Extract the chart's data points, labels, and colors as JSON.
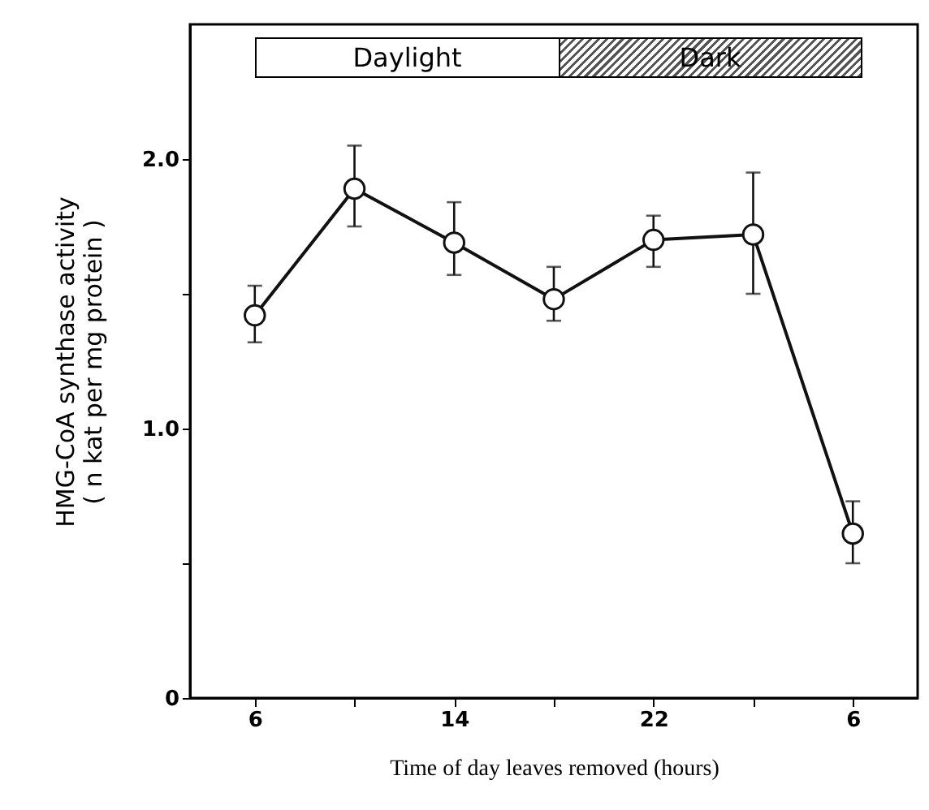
{
  "chart_data": {
    "type": "line",
    "xlabel": "Time of day leaves removed (hours)",
    "ylabel": "HMG-CoA synthase activity\n( n kat per mg protein )",
    "categories": [
      "6",
      null,
      "14",
      null,
      "22",
      null,
      "6"
    ],
    "series": [
      {
        "color": "#111111",
        "values": [
          1.42,
          1.89,
          1.69,
          1.48,
          1.7,
          1.72,
          0.61
        ],
        "errors": [
          [
            1.32,
            1.53
          ],
          [
            1.75,
            2.05
          ],
          [
            1.57,
            1.84
          ],
          [
            1.4,
            1.6
          ],
          [
            1.6,
            1.79
          ],
          [
            1.5,
            1.95
          ],
          [
            0.5,
            0.73
          ]
        ]
      }
    ],
    "ylim": [
      0,
      2.5
    ],
    "yticks": [
      0,
      {
        "value": 0.5,
        "label": null
      },
      {
        "value": 1,
        "label": "1.0"
      },
      {
        "value": 1.5,
        "label": null
      },
      {
        "value": 2,
        "label": "2.0"
      }
    ],
    "annotations": [
      "Daylight",
      "Dark"
    ],
    "marker": "circle",
    "line_style": "solid"
  }
}
